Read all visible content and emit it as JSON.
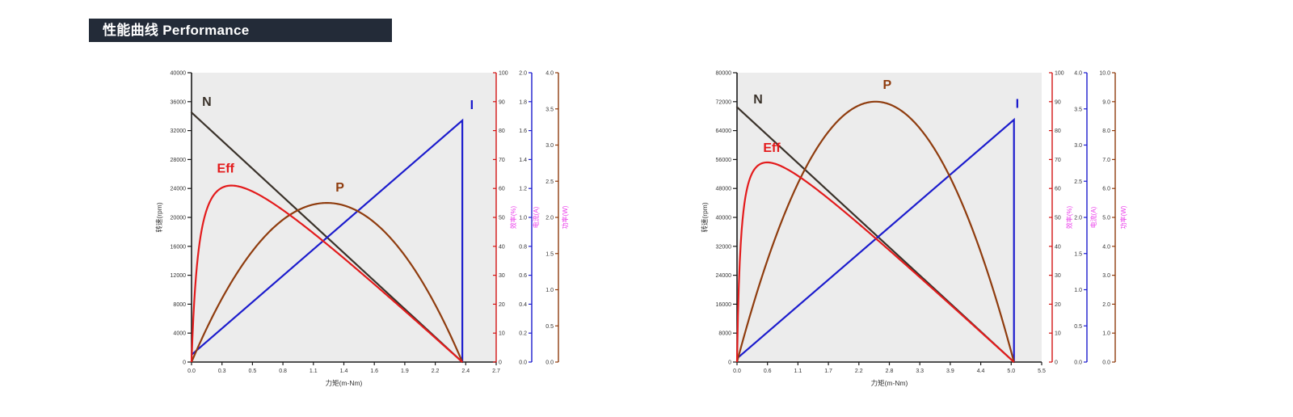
{
  "header": {
    "title": "性能曲线 Performance",
    "bar_color": "#232b38",
    "text_color": "#ffffff"
  },
  "chart_data": [
    {
      "type": "line",
      "x_axis": {
        "label": "力矩(m-Nm)",
        "min": 0,
        "max": 2.7,
        "tick_labels": [
          "0.0",
          "0.3",
          "0.5",
          "0.8",
          "1.1",
          "1.4",
          "1.6",
          "1.9",
          "2.2",
          "2.4",
          "2.7"
        ]
      },
      "speed_axis": {
        "label": "转速(rpm)",
        "min": 0,
        "max": 40000,
        "tick_step": 4000,
        "decimals": 0
      },
      "efficiency_axis": {
        "label": "效率(%)",
        "min": 0,
        "max": 100,
        "tick_step": 10,
        "decimals": 0,
        "color": "#d21414"
      },
      "current_axis": {
        "label": "电流(A)",
        "min": 0,
        "max": 2.0,
        "tick_step": 0.2,
        "decimals": 1,
        "color": "#1c1ccd"
      },
      "power_axis": {
        "label": "功率(W)",
        "min": 0,
        "max": 4.0,
        "tick_step": 0.5,
        "decimals": 1,
        "color": "#8f3c0e"
      },
      "stall_torque": 2.4,
      "curves": [
        {
          "name": "N",
          "quantity": "speed",
          "axis": "speed_axis",
          "shape": "linear",
          "points": [
            [
              0,
              34500
            ],
            [
              2.4,
              0
            ]
          ]
        },
        {
          "name": "I",
          "quantity": "current",
          "axis": "current_axis",
          "shape": "linear_then_drop",
          "points": [
            [
              0,
              0.05
            ],
            [
              2.4,
              1.67
            ],
            [
              2.4,
              0
            ]
          ]
        },
        {
          "name": "P",
          "quantity": "power",
          "axis": "power_axis",
          "shape": "parabola",
          "peak": [
            1.2,
            2.2
          ],
          "points": [
            [
              0,
              0
            ],
            [
              1.2,
              2.2
            ],
            [
              2.4,
              0
            ]
          ]
        },
        {
          "name": "Eff",
          "quantity": "efficiency",
          "axis": "efficiency_axis",
          "shape": "rise_then_decline",
          "peak": [
            0.37,
            61
          ],
          "points": [
            [
              0,
              0
            ],
            [
              0.37,
              61
            ],
            [
              2.4,
              0
            ]
          ]
        }
      ],
      "colors": {
        "speed": "#3a322a",
        "efficiency": "#e31b1c",
        "power": "#8f3c0e",
        "current": "#1c1ccd",
        "axis_title": "#ea3cea",
        "plot_bg": "#ececec",
        "spine": "#1a1a1a",
        "tick_text": "#333333"
      },
      "legend_position": "labels-on-curves",
      "grid": false
    },
    {
      "type": "line",
      "x_axis": {
        "label": "力矩(m-Nm)",
        "min": 0,
        "max": 5.5,
        "tick_labels": [
          "0.0",
          "0.6",
          "1.1",
          "1.7",
          "2.2",
          "2.8",
          "3.3",
          "3.9",
          "4.4",
          "5.0",
          "5.5"
        ]
      },
      "speed_axis": {
        "label": "转速(rpm)",
        "min": 0,
        "max": 80000,
        "tick_step": 8000,
        "decimals": 0
      },
      "efficiency_axis": {
        "label": "效率(%)",
        "min": 0,
        "max": 100,
        "tick_step": 10,
        "decimals": 0,
        "color": "#d21414"
      },
      "current_axis": {
        "label": "电流(A)",
        "min": 0,
        "max": 4.0,
        "tick_step": 0.5,
        "decimals": 1,
        "color": "#1c1ccd"
      },
      "power_axis": {
        "label": "功率(W)",
        "min": 0,
        "max": 10.0,
        "tick_step": 1.0,
        "decimals": 1,
        "color": "#8f3c0e"
      },
      "stall_torque": 5.0,
      "curves": [
        {
          "name": "N",
          "quantity": "speed",
          "axis": "speed_axis",
          "shape": "linear",
          "points": [
            [
              0,
              70500
            ],
            [
              5.0,
              0
            ]
          ]
        },
        {
          "name": "I",
          "quantity": "current",
          "axis": "current_axis",
          "shape": "linear_then_drop",
          "points": [
            [
              0,
              0.05
            ],
            [
              5.0,
              3.35
            ],
            [
              5.0,
              0
            ]
          ]
        },
        {
          "name": "P",
          "quantity": "power",
          "axis": "power_axis",
          "shape": "parabola",
          "peak": [
            2.5,
            9.0
          ],
          "points": [
            [
              0,
              0
            ],
            [
              2.5,
              9.0
            ],
            [
              5.0,
              0
            ]
          ]
        },
        {
          "name": "Eff",
          "quantity": "efficiency",
          "axis": "efficiency_axis",
          "shape": "rise_then_decline",
          "peak": [
            0.55,
            69
          ],
          "points": [
            [
              0,
              0
            ],
            [
              0.55,
              69
            ],
            [
              5.0,
              0
            ]
          ]
        }
      ],
      "colors": {
        "speed": "#3a322a",
        "efficiency": "#e31b1c",
        "power": "#8f3c0e",
        "current": "#1c1ccd",
        "axis_title": "#ea3cea",
        "plot_bg": "#ececec",
        "spine": "#1a1a1a",
        "tick_text": "#333333"
      },
      "legend_position": "labels-on-curves",
      "grid": false
    }
  ]
}
